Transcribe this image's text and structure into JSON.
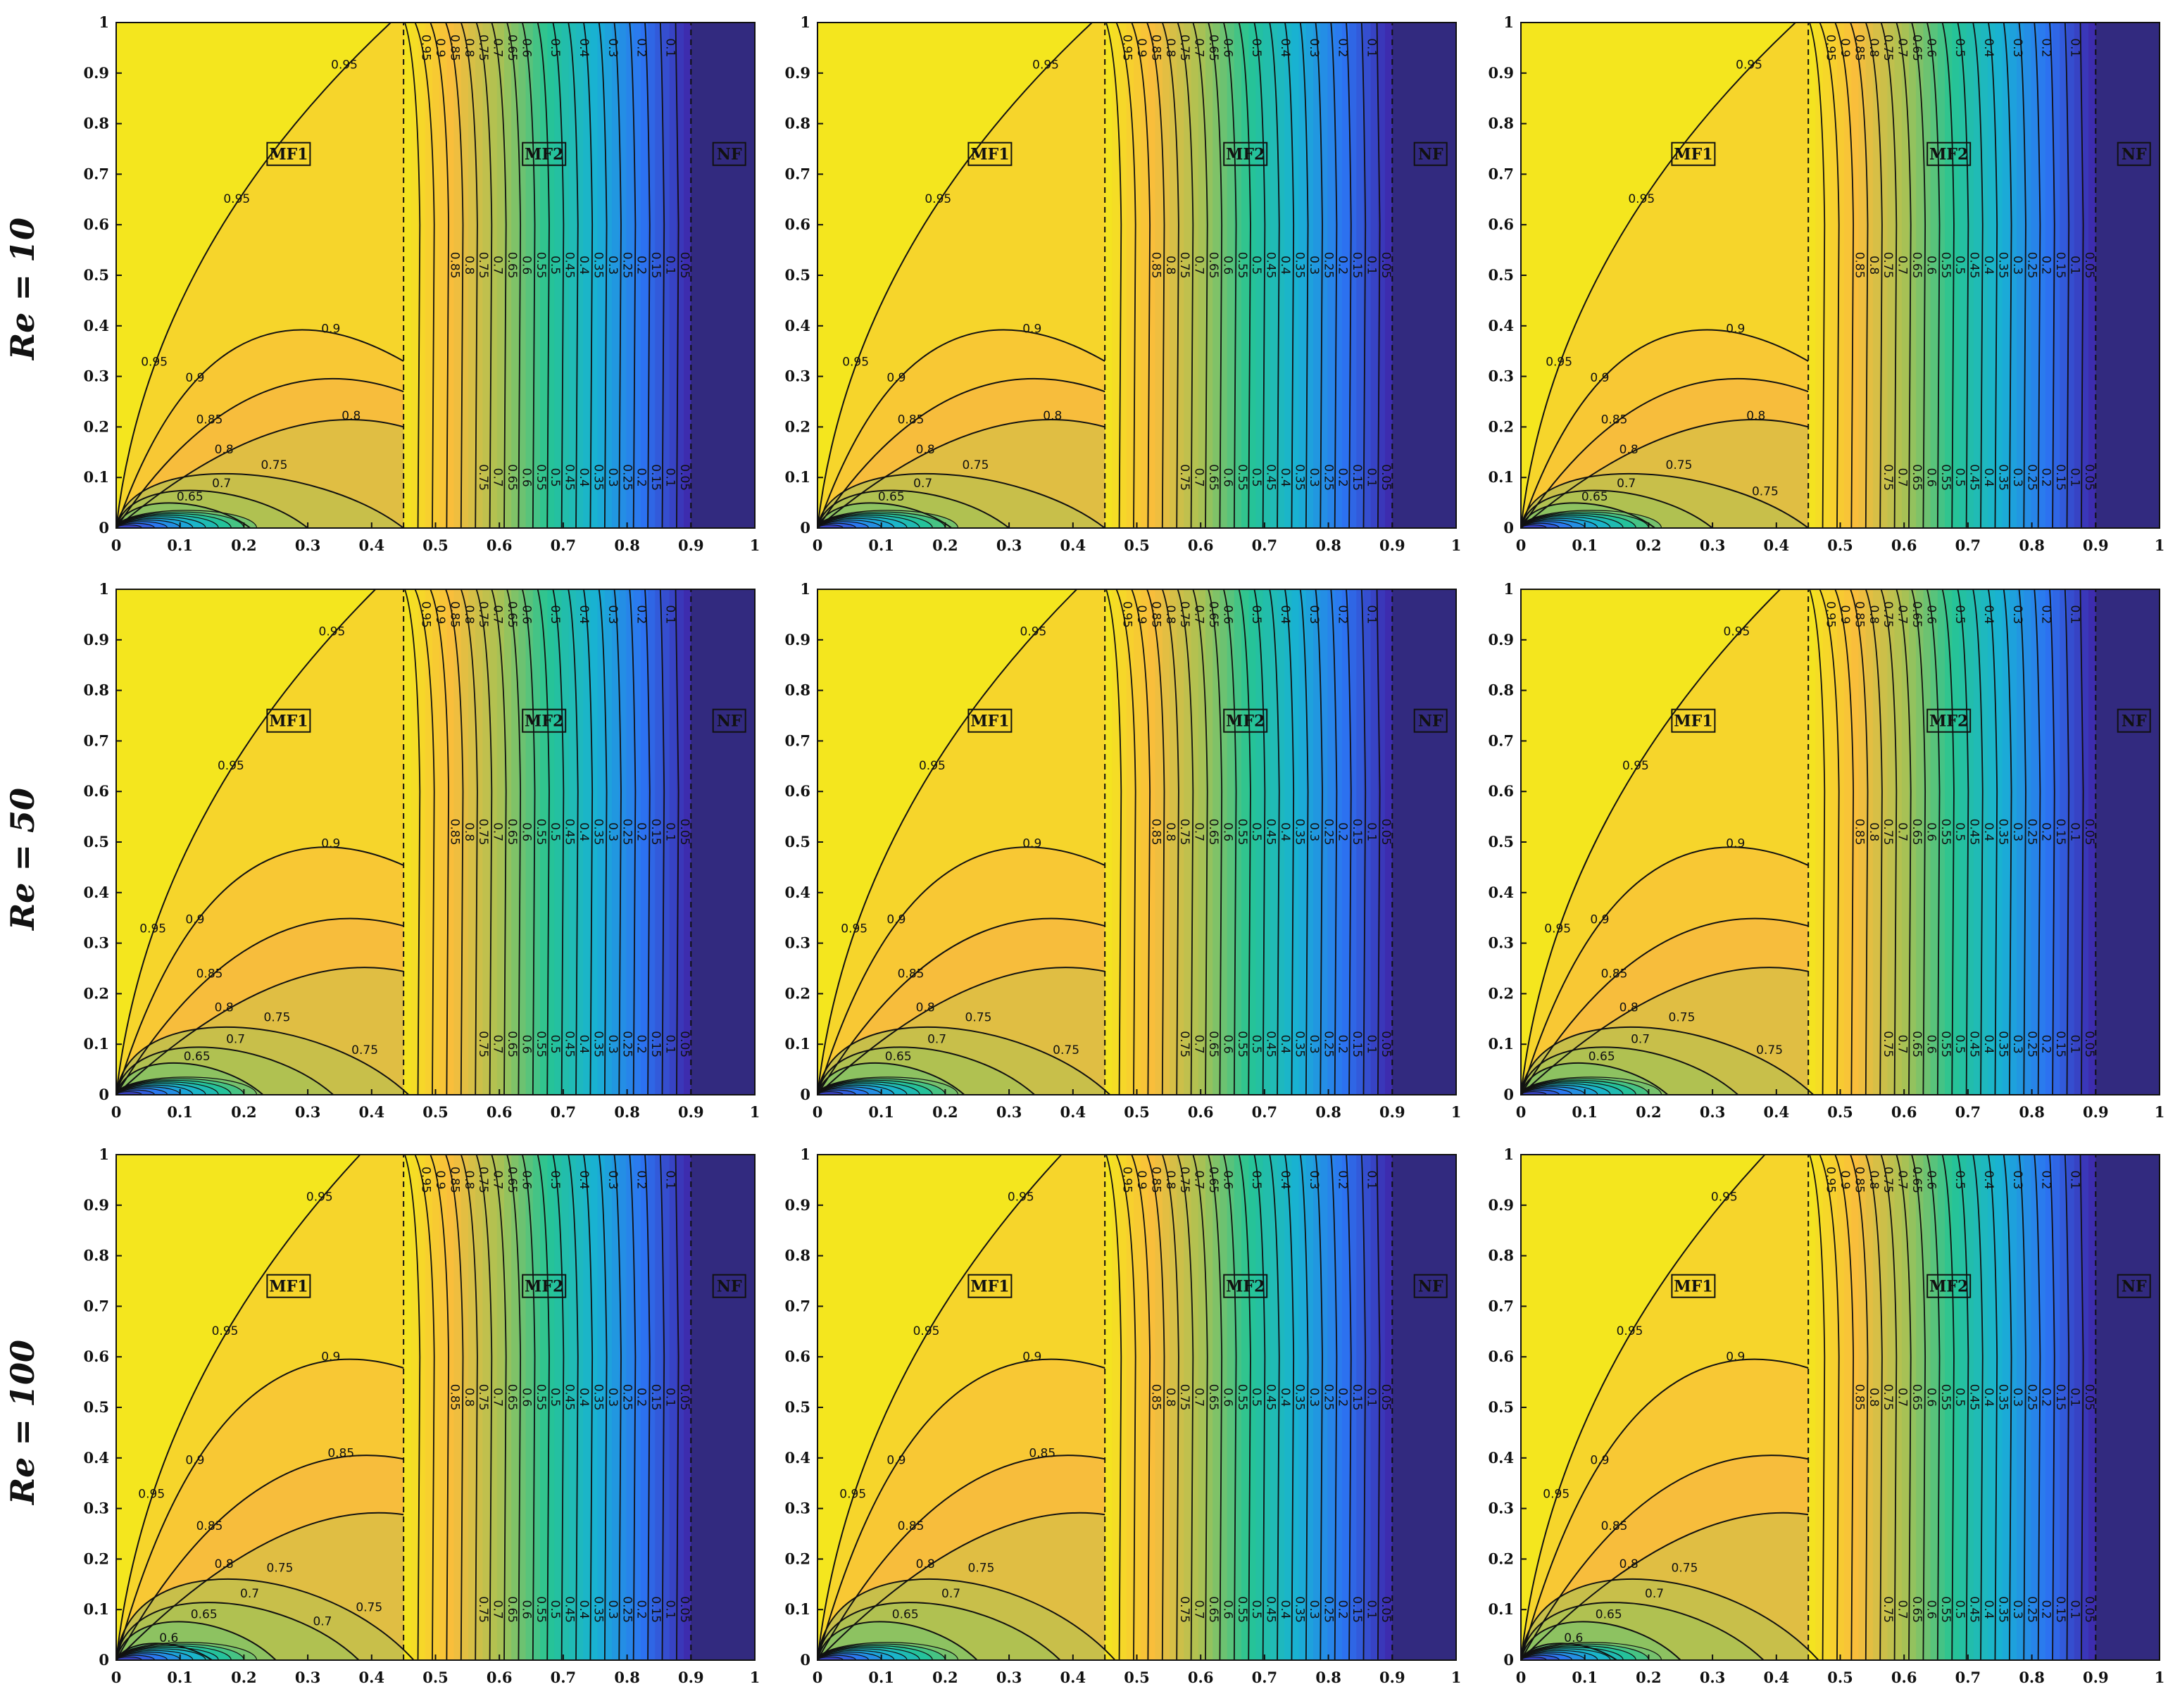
{
  "figure": {
    "rows": [
      {
        "label": "Re = 10"
      },
      {
        "label": "Re = 50"
      },
      {
        "label": "Re = 100"
      }
    ],
    "columns": 3,
    "zone_labels": [
      "MF1",
      "MF2",
      "NF"
    ]
  },
  "colors": {
    "colormap": [
      "#3e26a8",
      "#2c73f2",
      "#19b2d3",
      "#27c493",
      "#aac153",
      "#f9bd3c",
      "#f4e61e"
    ],
    "contour_line": "#111111",
    "nf_fill": "#322a7f"
  },
  "chart_data": {
    "type": "heatmap",
    "subtype": "filled-contour grid",
    "xlim": [
      0,
      1
    ],
    "ylim": [
      0,
      1
    ],
    "xticks": [
      "0",
      "0.1",
      "0.2",
      "0.3",
      "0.4",
      "0.5",
      "0.6",
      "0.7",
      "0.8",
      "0.9",
      "1"
    ],
    "yticks": [
      "0",
      "0.1",
      "0.2",
      "0.3",
      "0.4",
      "0.5",
      "0.6",
      "0.7",
      "0.8",
      "0.9",
      "1"
    ],
    "interfaces_x": [
      0.45,
      0.9
    ],
    "zones": [
      {
        "name": "MF1",
        "x_range": [
          0,
          0.45
        ]
      },
      {
        "name": "MF2",
        "x_range": [
          0.45,
          0.9
        ]
      },
      {
        "name": "NF",
        "x_range": [
          0.9,
          1
        ]
      }
    ],
    "mf2_levels": [
      "0.95",
      "0.9",
      "0.85",
      "0.8",
      "0.75",
      "0.7",
      "0.65",
      "0.6",
      "0.55",
      "0.5",
      "0.45",
      "0.4",
      "0.35",
      "0.3",
      "0.25",
      "0.2",
      "0.15",
      "0.1",
      "0.05"
    ],
    "mf2_labels_top": [
      "0.95",
      "0.9",
      "0.85",
      "0.8",
      "0.75",
      "0.7",
      "0.65",
      "0.6",
      "0.5",
      "0.4",
      "0.3",
      "0.2",
      "0.1"
    ],
    "mf2_labels_mid": [
      "0.85",
      "0.8",
      "0.75",
      "0.7",
      "0.65",
      "0.6",
      "0.55",
      "0.5",
      "0.45",
      "0.4",
      "0.35",
      "0.3",
      "0.25",
      "0.2",
      "0.15",
      "0.1",
      "0.05"
    ],
    "mf2_labels_bot": [
      "0.75",
      "0.7",
      "0.65",
      "0.6",
      "0.55",
      "0.5",
      "0.45",
      "0.4",
      "0.35",
      "0.3",
      "0.25",
      "0.2",
      "0.15",
      "0.1",
      "0.05"
    ],
    "panels": [
      {
        "re": 10,
        "col": 1,
        "mf1_contours": [
          {
            "level": 0.95,
            "labels": [
              "0.95",
              "0.95",
              "0.95"
            ]
          },
          {
            "level": 0.9,
            "labels": [
              "0.9",
              "0.9"
            ]
          },
          {
            "level": 0.85,
            "labels": [
              "0.85"
            ]
          },
          {
            "level": 0.8,
            "labels": [
              "0.8",
              "0.8"
            ]
          },
          {
            "level": 0.75,
            "labels": [
              "0.75"
            ]
          },
          {
            "level": 0.7,
            "labels": [
              "0.7"
            ]
          },
          {
            "level": 0.65,
            "labels": [
              "0.65"
            ]
          }
        ]
      },
      {
        "re": 10,
        "col": 2,
        "mf1_contours": [
          {
            "level": 0.95,
            "labels": [
              "0.95",
              "0.95",
              "0.95"
            ]
          },
          {
            "level": 0.9,
            "labels": [
              "0.9",
              "0.9"
            ]
          },
          {
            "level": 0.85,
            "labels": [
              "0.85"
            ]
          },
          {
            "level": 0.8,
            "labels": [
              "0.8",
              "0.8"
            ]
          },
          {
            "level": 0.75,
            "labels": [
              "0.75"
            ]
          },
          {
            "level": 0.7,
            "labels": [
              "0.7"
            ]
          },
          {
            "level": 0.65,
            "labels": [
              "0.65"
            ]
          }
        ]
      },
      {
        "re": 10,
        "col": 3,
        "mf1_contours": [
          {
            "level": 0.95,
            "labels": [
              "0.95",
              "0.95",
              "0.95"
            ]
          },
          {
            "level": 0.9,
            "labels": [
              "0.9",
              "0.9"
            ]
          },
          {
            "level": 0.85,
            "labels": [
              "0.85"
            ]
          },
          {
            "level": 0.8,
            "labels": [
              "0.8",
              "0.8"
            ]
          },
          {
            "level": 0.75,
            "labels": [
              "0.75",
              "0.75"
            ]
          },
          {
            "level": 0.7,
            "labels": [
              "0.7"
            ]
          },
          {
            "level": 0.65,
            "labels": [
              "0.65"
            ]
          }
        ]
      },
      {
        "re": 50,
        "col": 1,
        "mf1_contours": [
          {
            "level": 0.95,
            "labels": [
              "0.95",
              "0.95",
              "0.95"
            ]
          },
          {
            "level": 0.9,
            "labels": [
              "0.9",
              "0.9"
            ]
          },
          {
            "level": 0.85,
            "labels": [
              "0.85"
            ]
          },
          {
            "level": 0.8,
            "labels": [
              "0.8"
            ]
          },
          {
            "level": 0.75,
            "labels": [
              "0.75",
              "0.75"
            ]
          },
          {
            "level": 0.7,
            "labels": [
              "0.7"
            ]
          },
          {
            "level": 0.65,
            "labels": [
              "0.65"
            ]
          }
        ]
      },
      {
        "re": 50,
        "col": 2,
        "mf1_contours": [
          {
            "level": 0.95,
            "labels": [
              "0.95",
              "0.95",
              "0.95"
            ]
          },
          {
            "level": 0.9,
            "labels": [
              "0.9",
              "0.9"
            ]
          },
          {
            "level": 0.85,
            "labels": [
              "0.85"
            ]
          },
          {
            "level": 0.8,
            "labels": [
              "0.8"
            ]
          },
          {
            "level": 0.75,
            "labels": [
              "0.75",
              "0.75"
            ]
          },
          {
            "level": 0.7,
            "labels": [
              "0.7"
            ]
          },
          {
            "level": 0.65,
            "labels": [
              "0.65"
            ]
          }
        ]
      },
      {
        "re": 50,
        "col": 3,
        "mf1_contours": [
          {
            "level": 0.95,
            "labels": [
              "0.95",
              "0.95",
              "0.95"
            ]
          },
          {
            "level": 0.9,
            "labels": [
              "0.9",
              "0.9"
            ]
          },
          {
            "level": 0.85,
            "labels": [
              "0.85"
            ]
          },
          {
            "level": 0.8,
            "labels": [
              "0.8"
            ]
          },
          {
            "level": 0.75,
            "labels": [
              "0.75",
              "0.75"
            ]
          },
          {
            "level": 0.7,
            "labels": [
              "0.7"
            ]
          },
          {
            "level": 0.65,
            "labels": [
              "0.65"
            ]
          }
        ]
      },
      {
        "re": 100,
        "col": 1,
        "mf1_contours": [
          {
            "level": 0.95,
            "labels": [
              "0.95",
              "0.95",
              "0.95"
            ]
          },
          {
            "level": 0.9,
            "labels": [
              "0.9",
              "0.9"
            ]
          },
          {
            "level": 0.85,
            "labels": [
              "0.85",
              "0.85"
            ]
          },
          {
            "level": 0.8,
            "labels": [
              "0.8"
            ]
          },
          {
            "level": 0.75,
            "labels": [
              "0.75",
              "0.75"
            ]
          },
          {
            "level": 0.7,
            "labels": [
              "0.7",
              "0.7"
            ]
          },
          {
            "level": 0.65,
            "labels": [
              "0.65"
            ]
          },
          {
            "level": 0.6,
            "labels": [
              "0.6"
            ]
          }
        ]
      },
      {
        "re": 100,
        "col": 2,
        "mf1_contours": [
          {
            "level": 0.95,
            "labels": [
              "0.95",
              "0.95",
              "0.95"
            ]
          },
          {
            "level": 0.9,
            "labels": [
              "0.9",
              "0.9"
            ]
          },
          {
            "level": 0.85,
            "labels": [
              "0.85",
              "0.85"
            ]
          },
          {
            "level": 0.8,
            "labels": [
              "0.8"
            ]
          },
          {
            "level": 0.75,
            "labels": [
              "0.75"
            ]
          },
          {
            "level": 0.7,
            "labels": [
              "0.7"
            ]
          },
          {
            "level": 0.65,
            "labels": [
              "0.65"
            ]
          }
        ]
      },
      {
        "re": 100,
        "col": 3,
        "mf1_contours": [
          {
            "level": 0.95,
            "labels": [
              "0.95",
              "0.95",
              "0.95"
            ]
          },
          {
            "level": 0.9,
            "labels": [
              "0.9",
              "0.9"
            ]
          },
          {
            "level": 0.85,
            "labels": [
              "0.85"
            ]
          },
          {
            "level": 0.8,
            "labels": [
              "0.8"
            ]
          },
          {
            "level": 0.75,
            "labels": [
              "0.75"
            ]
          },
          {
            "level": 0.7,
            "labels": [
              "0.7"
            ]
          },
          {
            "level": 0.65,
            "labels": [
              "0.65"
            ]
          },
          {
            "level": 0.6,
            "labels": [
              "0.6"
            ]
          }
        ]
      }
    ]
  }
}
